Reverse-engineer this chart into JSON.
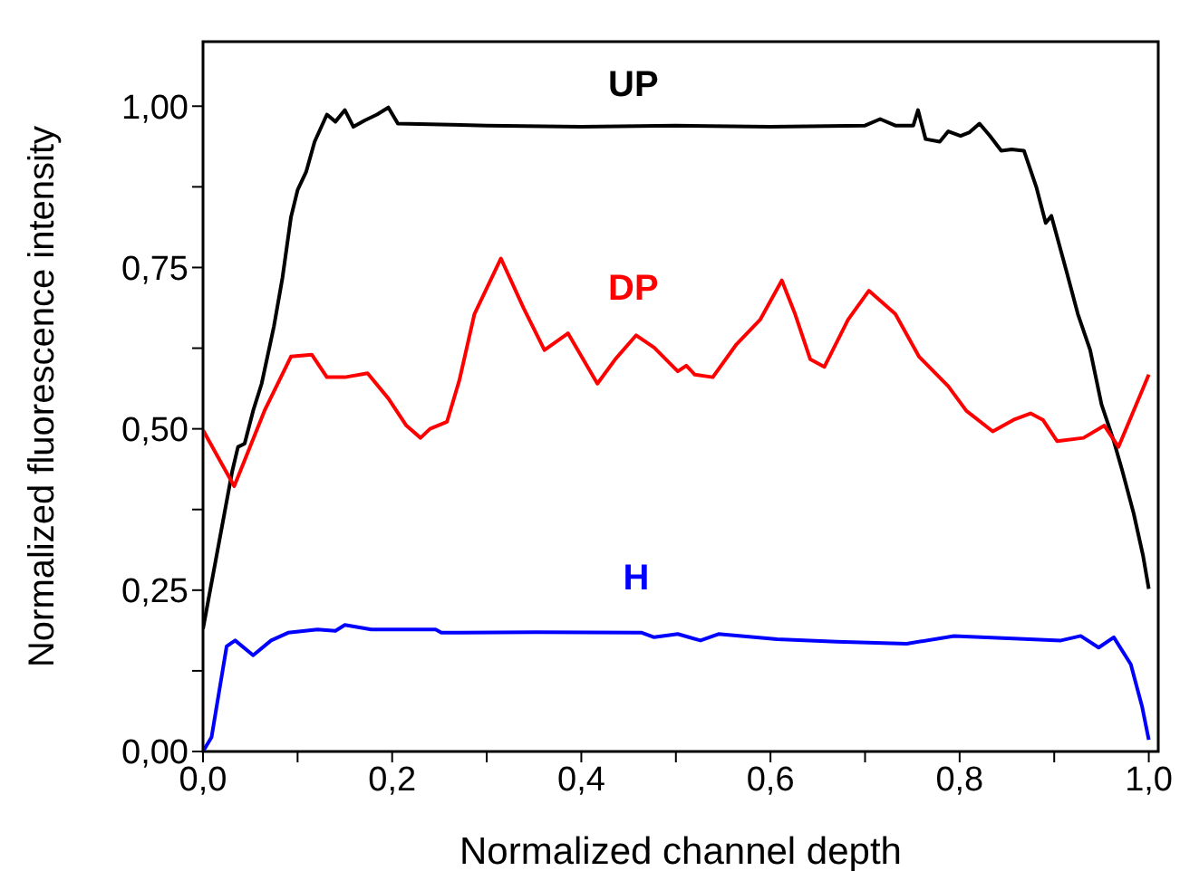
{
  "chart_data": {
    "type": "line",
    "xlabel": "Normalized channel depth",
    "ylabel": "Normalized fluorescence intensity",
    "xlim": [
      0,
      1.01
    ],
    "ylim": [
      0,
      1.1
    ],
    "xticks": [
      {
        "value": 0,
        "label": "0,0"
      },
      {
        "value": 0.1,
        "label": null
      },
      {
        "value": 0.2,
        "label": "0,2"
      },
      {
        "value": 0.3,
        "label": null
      },
      {
        "value": 0.4,
        "label": "0,4"
      },
      {
        "value": 0.5,
        "label": null
      },
      {
        "value": 0.6,
        "label": "0,6"
      },
      {
        "value": 0.7,
        "label": null
      },
      {
        "value": 0.8,
        "label": "0,8"
      },
      {
        "value": 0.9,
        "label": null
      },
      {
        "value": 1,
        "label": "1,0"
      }
    ],
    "yticks": [
      {
        "value": 0,
        "label": "0,00"
      },
      {
        "value": 0.125,
        "label": null
      },
      {
        "value": 0.25,
        "label": "0,25"
      },
      {
        "value": 0.375,
        "label": null
      },
      {
        "value": 0.5,
        "label": "0,50"
      },
      {
        "value": 0.625,
        "label": null
      },
      {
        "value": 0.75,
        "label": "0,75"
      },
      {
        "value": 0.875,
        "label": null
      },
      {
        "value": 1,
        "label": "1,00"
      }
    ],
    "grid": false,
    "legend": false,
    "marker": "none",
    "line_style": "solid",
    "series": [
      {
        "name": "UP",
        "color": "#000000",
        "x": [
          0,
          0.031,
          0.037,
          0.044,
          0.053,
          0.062,
          0.075,
          0.084,
          0.093,
          0.1,
          0.109,
          0.118,
          0.131,
          0.14,
          0.15,
          0.159,
          0.171,
          0.184,
          0.196,
          0.206,
          0.3,
          0.4,
          0.5,
          0.6,
          0.7,
          0.716,
          0.732,
          0.751,
          0.756,
          0.764,
          0.779,
          0.788,
          0.801,
          0.81,
          0.821,
          0.832,
          0.844,
          0.855,
          0.868,
          0.881,
          0.891,
          0.897,
          0.913,
          0.925,
          0.938,
          0.95,
          0.963,
          0.972,
          0.984,
          0.994,
          1.0
        ],
        "values": [
          0.19,
          0.435,
          0.472,
          0.477,
          0.528,
          0.57,
          0.659,
          0.734,
          0.828,
          0.87,
          0.898,
          0.945,
          0.987,
          0.976,
          0.994,
          0.968,
          0.978,
          0.987,
          0.998,
          0.973,
          0.97,
          0.968,
          0.97,
          0.968,
          0.97,
          0.98,
          0.97,
          0.97,
          0.994,
          0.949,
          0.945,
          0.961,
          0.954,
          0.959,
          0.973,
          0.954,
          0.931,
          0.933,
          0.931,
          0.875,
          0.819,
          0.83,
          0.744,
          0.678,
          0.622,
          0.538,
          0.481,
          0.435,
          0.369,
          0.303,
          0.252
        ]
      },
      {
        "name": "DP",
        "color": "#ff0000",
        "x": [
          0,
          0.033,
          0.065,
          0.093,
          0.115,
          0.131,
          0.15,
          0.174,
          0.196,
          0.215,
          0.23,
          0.24,
          0.258,
          0.271,
          0.287,
          0.315,
          0.339,
          0.361,
          0.386,
          0.417,
          0.436,
          0.458,
          0.477,
          0.502,
          0.511,
          0.52,
          0.539,
          0.564,
          0.589,
          0.612,
          0.626,
          0.642,
          0.657,
          0.682,
          0.704,
          0.732,
          0.757,
          0.788,
          0.807,
          0.835,
          0.857,
          0.875,
          0.888,
          0.903,
          0.931,
          0.953,
          0.968,
          1.0
        ],
        "values": [
          0.498,
          0.411,
          0.528,
          0.612,
          0.615,
          0.58,
          0.58,
          0.586,
          0.547,
          0.505,
          0.486,
          0.5,
          0.511,
          0.575,
          0.678,
          0.764,
          0.687,
          0.622,
          0.648,
          0.57,
          0.608,
          0.645,
          0.626,
          0.589,
          0.598,
          0.584,
          0.58,
          0.631,
          0.669,
          0.73,
          0.678,
          0.608,
          0.596,
          0.669,
          0.714,
          0.678,
          0.612,
          0.566,
          0.528,
          0.496,
          0.514,
          0.524,
          0.514,
          0.481,
          0.486,
          0.505,
          0.472,
          0.584
        ]
      },
      {
        "name": "H",
        "color": "#0000ff",
        "x": [
          0,
          0.009,
          0.025,
          0.034,
          0.053,
          0.072,
          0.09,
          0.121,
          0.14,
          0.15,
          0.178,
          0.215,
          0.246,
          0.252,
          0.352,
          0.464,
          0.477,
          0.502,
          0.526,
          0.545,
          0.607,
          0.67,
          0.744,
          0.794,
          0.857,
          0.907,
          0.928,
          0.947,
          0.963,
          0.981,
          0.993,
          1.0
        ],
        "values": [
          0,
          0.022,
          0.163,
          0.172,
          0.149,
          0.172,
          0.184,
          0.189,
          0.187,
          0.196,
          0.189,
          0.189,
          0.189,
          0.184,
          0.185,
          0.184,
          0.177,
          0.182,
          0.172,
          0.182,
          0.174,
          0.17,
          0.167,
          0.179,
          0.175,
          0.172,
          0.179,
          0.161,
          0.177,
          0.135,
          0.069,
          0.018
        ]
      }
    ]
  }
}
